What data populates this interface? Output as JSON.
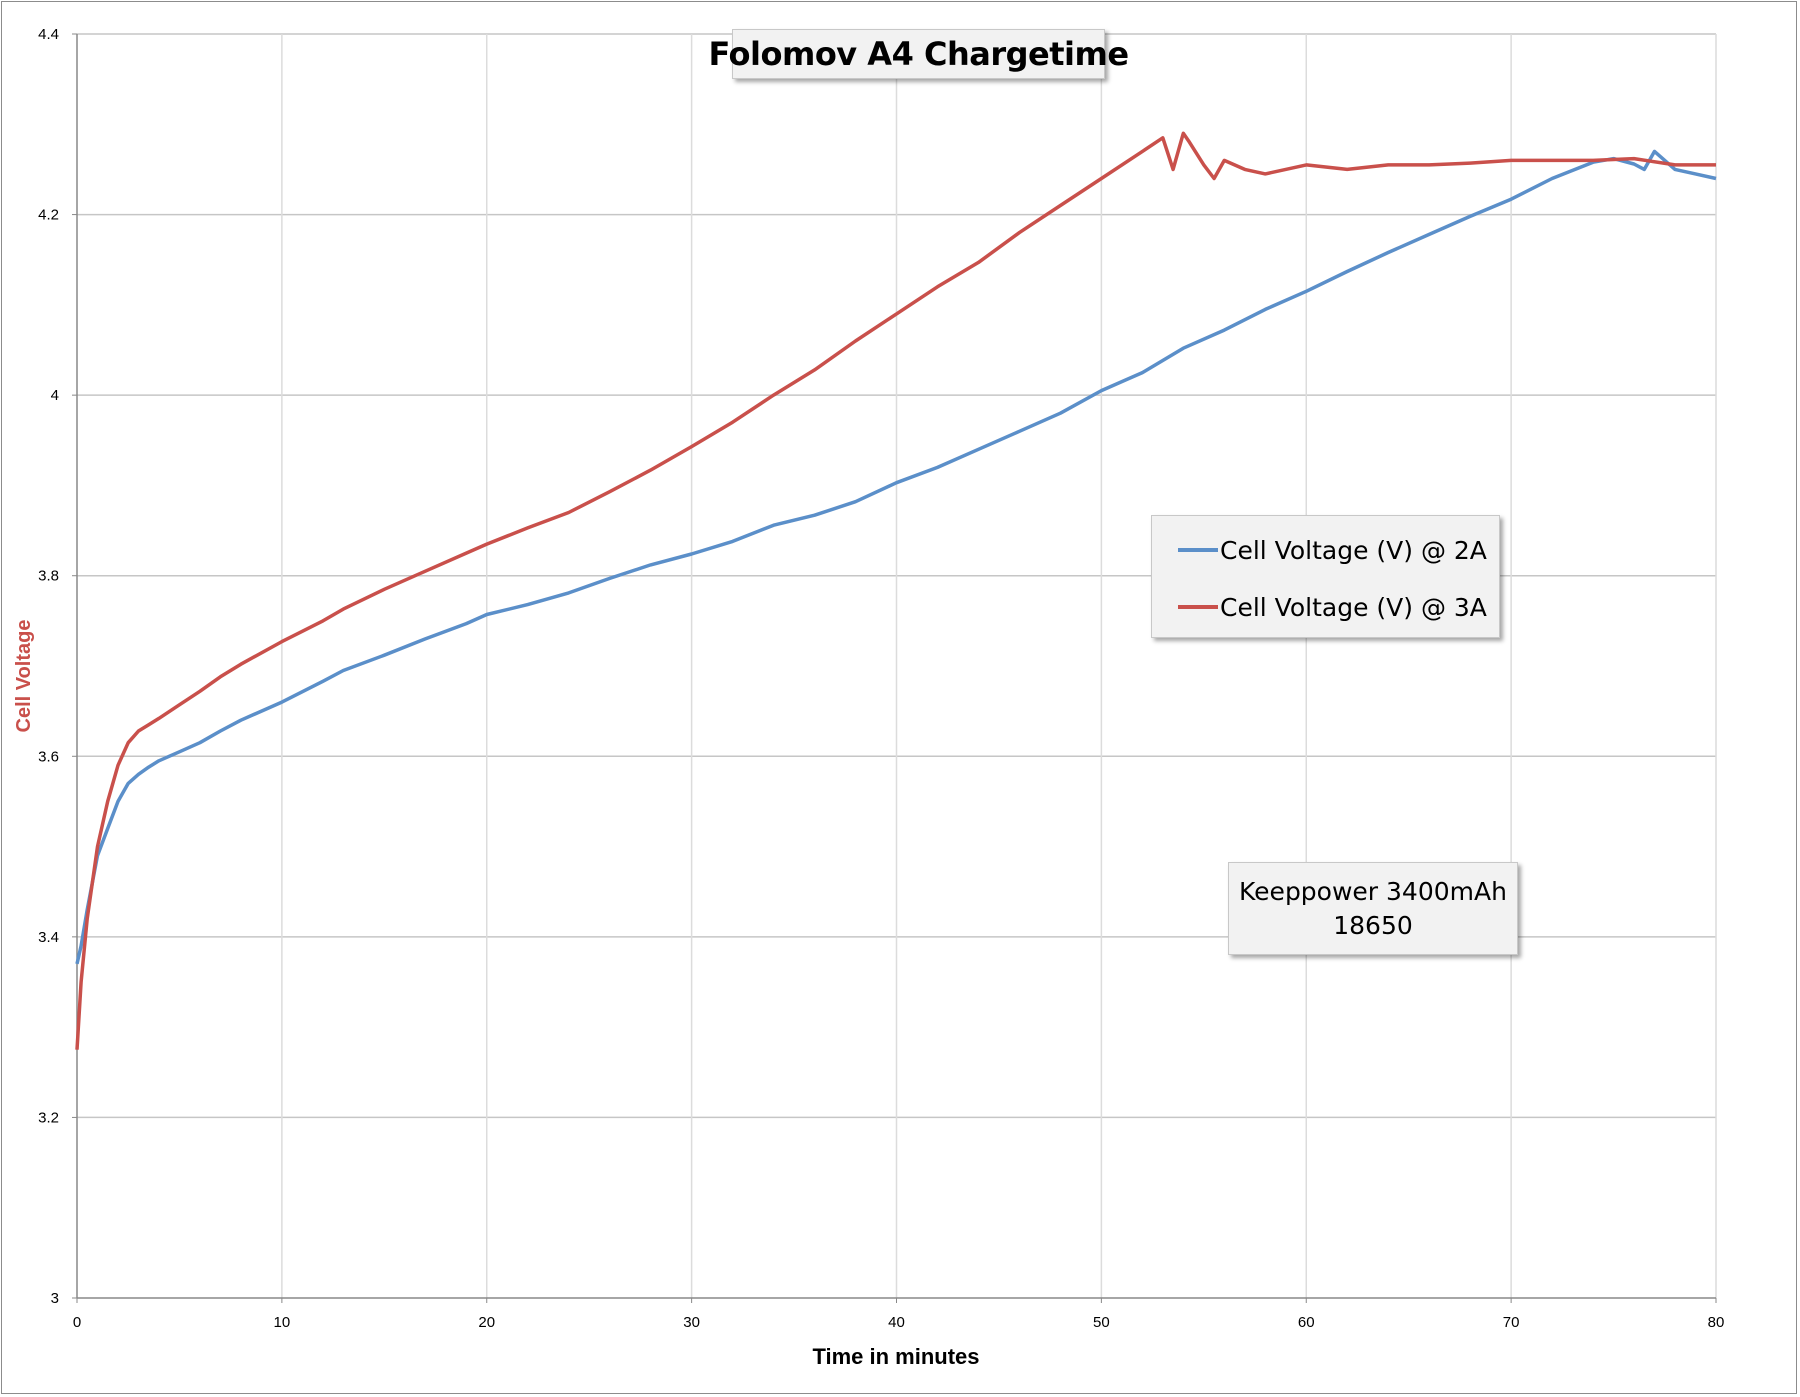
{
  "chart_data": {
    "type": "line",
    "title": "Folomov A4 Chargetime",
    "xlabel": "Time in minutes",
    "ylabel": "Cell Voltage",
    "xlim": [
      0,
      80
    ],
    "ylim": [
      3,
      4.4
    ],
    "xticks": [
      "0",
      "10",
      "20",
      "30",
      "40",
      "50",
      "60",
      "70",
      "80"
    ],
    "yticks": [
      "3",
      "3.2",
      "3.4",
      "3.6",
      "3.8",
      "4",
      "4.2",
      "4.4"
    ],
    "grid": true,
    "legend_position": "right",
    "annotation": [
      "Keeppower 3400mAh",
      "18650"
    ],
    "series": [
      {
        "name": "Cell Voltage (V) @ 2A",
        "color": "#5b8fc9",
        "x": [
          0,
          0.2,
          0.5,
          1,
          1.5,
          2,
          2.5,
          3,
          3.5,
          4,
          5,
          6,
          7,
          8,
          10,
          12,
          13,
          15,
          17,
          19,
          20,
          22,
          24,
          26,
          28,
          30,
          32,
          34,
          36,
          38,
          40,
          42,
          44,
          46,
          48,
          50,
          52,
          54,
          56,
          58,
          60,
          62,
          64,
          66,
          68,
          70,
          72,
          74,
          75,
          76,
          76.5,
          77,
          78,
          79,
          80
        ],
        "y": [
          3.37,
          3.39,
          3.43,
          3.49,
          3.52,
          3.55,
          3.57,
          3.58,
          3.588,
          3.595,
          3.605,
          3.615,
          3.628,
          3.64,
          3.66,
          3.683,
          3.695,
          3.712,
          3.73,
          3.747,
          3.757,
          3.768,
          3.781,
          3.797,
          3.812,
          3.824,
          3.838,
          3.856,
          3.867,
          3.882,
          3.903,
          3.92,
          3.94,
          3.96,
          3.98,
          4.005,
          4.025,
          4.052,
          4.072,
          4.095,
          4.115,
          4.137,
          4.158,
          4.178,
          4.198,
          4.217,
          4.24,
          4.258,
          4.262,
          4.256,
          4.25,
          4.27,
          4.25,
          4.245,
          4.24
        ]
      },
      {
        "name": "Cell Voltage (V) @ 3A",
        "color": "#c9504b",
        "x": [
          0,
          0.2,
          0.5,
          1,
          1.5,
          2,
          2.5,
          3,
          3.5,
          4,
          5,
          6,
          7,
          8,
          10,
          12,
          13,
          15,
          17,
          19,
          20,
          22,
          24,
          26,
          28,
          30,
          32,
          34,
          36,
          38,
          40,
          42,
          44,
          46,
          48,
          50,
          52,
          53,
          53.5,
          54,
          54.3,
          55,
          55.5,
          56,
          57,
          58,
          60,
          62,
          64,
          66,
          68,
          70,
          72,
          74,
          76,
          78,
          80
        ],
        "y": [
          3.275,
          3.35,
          3.42,
          3.5,
          3.55,
          3.59,
          3.615,
          3.628,
          3.635,
          3.642,
          3.657,
          3.672,
          3.688,
          3.702,
          3.727,
          3.75,
          3.763,
          3.785,
          3.805,
          3.825,
          3.835,
          3.853,
          3.87,
          3.893,
          3.917,
          3.943,
          3.97,
          4.0,
          4.028,
          4.06,
          4.09,
          4.12,
          4.147,
          4.18,
          4.21,
          4.24,
          4.27,
          4.285,
          4.25,
          4.29,
          4.28,
          4.255,
          4.24,
          4.26,
          4.25,
          4.245,
          4.255,
          4.25,
          4.255,
          4.255,
          4.257,
          4.26,
          4.26,
          4.26,
          4.262,
          4.255,
          4.255
        ]
      }
    ]
  }
}
